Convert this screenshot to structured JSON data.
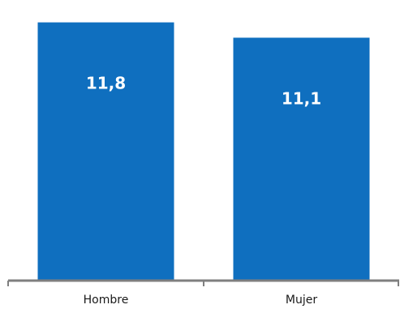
{
  "chart_data": {
    "type": "bar",
    "title": "",
    "xlabel": "",
    "ylabel": "",
    "categories": [
      "Hombre",
      "Mujer"
    ],
    "values": [
      11.8,
      11.1
    ],
    "value_labels": [
      "11,8",
      "11,1"
    ],
    "ylim": [
      0,
      12.6
    ],
    "grid": false,
    "legend": "none",
    "colors": {
      "bar": "#0F6FBF",
      "axis": "#7F7F7F",
      "value_label": "#FFFFFF",
      "tick_label": "#1A1A1A"
    }
  }
}
